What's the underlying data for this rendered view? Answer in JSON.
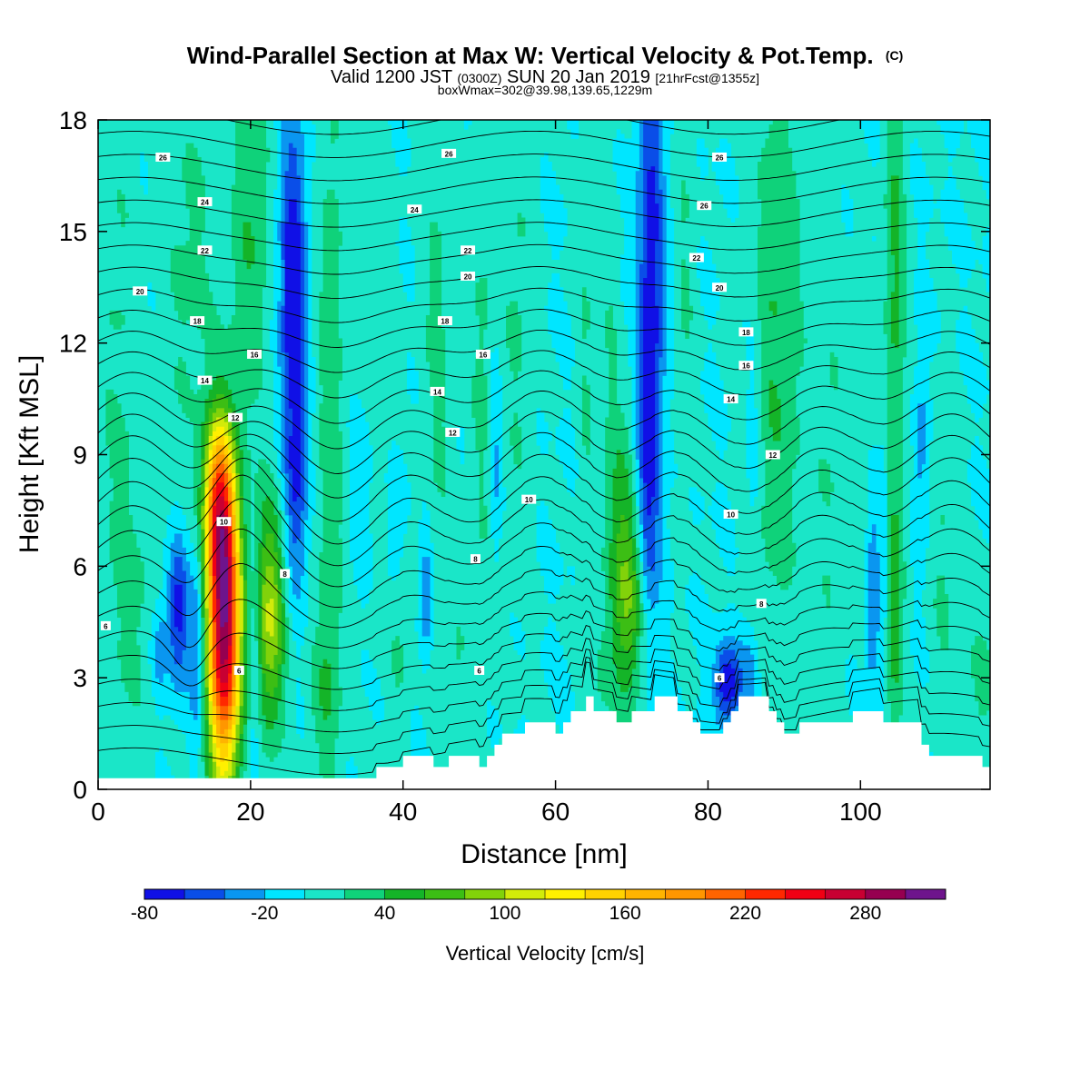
{
  "chart_data": {
    "type": "heatmap",
    "title": "Wind-Parallel Section at Max W: Vertical Velocity & Pot.Temp.",
    "title_mark": "(C)",
    "subtitle_parts": [
      "Valid 1200 JST ",
      "(0300Z)",
      " SUN 20 Jan 2019 ",
      "[21hrFcst@1355z]"
    ],
    "subtitle2": "boxWmax=302@39.98,139.65,1229m",
    "xlabel": "Distance [nm]",
    "ylabel": "Height [Kft MSL]",
    "xlim": [
      0,
      117
    ],
    "ylim": [
      0,
      18
    ],
    "x_ticks": [
      0,
      20,
      40,
      60,
      80,
      100
    ],
    "y_ticks": [
      0,
      3,
      6,
      9,
      12,
      15,
      18
    ],
    "grid": false,
    "colorbar": {
      "label": "Vertical Velocity [cm/s]",
      "min": -80,
      "step": 20,
      "colors": [
        "#1010e6",
        "#0a4ee8",
        "#0a96f0",
        "#00e6ff",
        "#1ae6c8",
        "#0fd27a",
        "#14b428",
        "#3cbe14",
        "#82d20a",
        "#d2eb0a",
        "#fff000",
        "#ffd200",
        "#ffb400",
        "#ff9600",
        "#ff6400",
        "#ff2800",
        "#f00014",
        "#c80032",
        "#960050",
        "#6e148c"
      ],
      "tick_labels": [
        "-80",
        "-20",
        "40",
        "100",
        "160",
        "220",
        "280"
      ],
      "tick_values": [
        -80,
        -20,
        40,
        100,
        160,
        220,
        280
      ]
    },
    "features": [
      {
        "x": 16.5,
        "y": 4.5,
        "sx": 1.5,
        "sy": 3.0,
        "w": 302
      },
      {
        "x": 15.5,
        "y": 7.8,
        "sx": 1.3,
        "sy": 1.5,
        "w": 120
      },
      {
        "x": 22.5,
        "y": 4.6,
        "sx": 1.4,
        "sy": 2.2,
        "w": 100
      },
      {
        "x": 25.5,
        "y": 13.5,
        "sx": 1.2,
        "sy": 3.2,
        "w": -80
      },
      {
        "x": 26.0,
        "y": 8.0,
        "sx": 1.0,
        "sy": 2.0,
        "w": -50
      },
      {
        "x": 10.5,
        "y": 4.8,
        "sx": 1.0,
        "sy": 1.4,
        "w": -70
      },
      {
        "x": 8.0,
        "y": 3.8,
        "sx": 0.8,
        "sy": 1.0,
        "w": -35
      },
      {
        "x": 13.0,
        "y": 4.0,
        "sx": 0.7,
        "sy": 2.0,
        "w": -45
      },
      {
        "x": 20.5,
        "y": 3.0,
        "sx": 0.6,
        "sy": 2.5,
        "w": -30
      },
      {
        "x": 20.0,
        "y": 15.0,
        "sx": 1.8,
        "sy": 3.5,
        "w": 40
      },
      {
        "x": 12.0,
        "y": 14.0,
        "sx": 2.5,
        "sy": 4.0,
        "w": 25
      },
      {
        "x": 30.5,
        "y": 10.0,
        "sx": 1.3,
        "sy": 7.0,
        "w": 35
      },
      {
        "x": 36.5,
        "y": 12.0,
        "sx": 1.5,
        "sy": 5.0,
        "w": 20
      },
      {
        "x": 2.5,
        "y": 12.0,
        "sx": 2.0,
        "sy": 6.0,
        "w": 20
      },
      {
        "x": 5.0,
        "y": 5.0,
        "sx": 2.5,
        "sy": 3.0,
        "w": 20
      },
      {
        "x": 29.5,
        "y": 2.5,
        "sx": 1.5,
        "sy": 1.5,
        "w": 25
      },
      {
        "x": 39.5,
        "y": 4.0,
        "sx": 1.0,
        "sy": 2.0,
        "w": 22
      },
      {
        "x": 44.5,
        "y": 12.0,
        "sx": 1.5,
        "sy": 5.0,
        "w": 25
      },
      {
        "x": 50.5,
        "y": 11.0,
        "sx": 1.3,
        "sy": 5.0,
        "w": 25
      },
      {
        "x": 55.0,
        "y": 13.0,
        "sx": 1.5,
        "sy": 5.0,
        "w": 22
      },
      {
        "x": 35.0,
        "y": 8.5,
        "sx": 1.2,
        "sy": 2.0,
        "w": -20
      },
      {
        "x": 39.0,
        "y": 7.0,
        "sx": 1.0,
        "sy": 1.5,
        "w": -18
      },
      {
        "x": 43.0,
        "y": 5.3,
        "sx": 0.5,
        "sy": 1.2,
        "w": -45
      },
      {
        "x": 52.0,
        "y": 9.0,
        "sx": 0.6,
        "sy": 2.0,
        "w": -35
      },
      {
        "x": 47.0,
        "y": 3.0,
        "sx": 1.5,
        "sy": 1.5,
        "w": 20
      },
      {
        "x": 69.5,
        "y": 5.0,
        "sx": 1.5,
        "sy": 2.0,
        "w": 80
      },
      {
        "x": 68.5,
        "y": 8.0,
        "sx": 1.0,
        "sy": 2.0,
        "w": 30
      },
      {
        "x": 66.0,
        "y": 3.0,
        "sx": 1.0,
        "sy": 1.0,
        "w": 20
      },
      {
        "x": 72.5,
        "y": 14.0,
        "sx": 1.2,
        "sy": 5.0,
        "w": -70
      },
      {
        "x": 72.0,
        "y": 8.0,
        "sx": 1.0,
        "sy": 3.0,
        "w": -40
      },
      {
        "x": 64.0,
        "y": 11.0,
        "sx": 0.8,
        "sy": 6.0,
        "w": 20
      },
      {
        "x": 67.0,
        "y": 11.0,
        "sx": 0.8,
        "sy": 4.0,
        "w": 20
      },
      {
        "x": 77.0,
        "y": 14.0,
        "sx": 1.0,
        "sy": 4.0,
        "w": 20
      },
      {
        "x": 82.5,
        "y": 2.8,
        "sx": 1.2,
        "sy": 0.8,
        "w": -80
      },
      {
        "x": 85.5,
        "y": 3.3,
        "sx": 1.0,
        "sy": 1.0,
        "w": -35
      },
      {
        "x": 86.0,
        "y": 8.0,
        "sx": 0.8,
        "sy": 3.5,
        "w": -28
      },
      {
        "x": 89.0,
        "y": 12.0,
        "sx": 2.5,
        "sy": 6.0,
        "w": 40
      },
      {
        "x": 86.0,
        "y": 5.0,
        "sx": 1.0,
        "sy": 2.0,
        "w": 25
      },
      {
        "x": 96.0,
        "y": 9.0,
        "sx": 1.5,
        "sy": 5.0,
        "w": 20
      },
      {
        "x": 100.0,
        "y": 10.0,
        "sx": 1.0,
        "sy": 3.0,
        "w": 18
      },
      {
        "x": 101.5,
        "y": 5.0,
        "sx": 0.6,
        "sy": 2.0,
        "w": -40
      },
      {
        "x": 103.0,
        "y": 7.0,
        "sx": 0.5,
        "sy": 2.0,
        "w": -25
      },
      {
        "x": 104.5,
        "y": 4.5,
        "sx": 0.8,
        "sy": 2.5,
        "w": 45
      },
      {
        "x": 104.5,
        "y": 14.0,
        "sx": 1.0,
        "sy": 5.0,
        "w": 45
      },
      {
        "x": 108.0,
        "y": 9.0,
        "sx": 0.6,
        "sy": 2.0,
        "w": -30
      },
      {
        "x": 111.0,
        "y": 6.0,
        "sx": 1.5,
        "sy": 3.0,
        "w": 22
      },
      {
        "x": 116.0,
        "y": 3.0,
        "sx": 1.5,
        "sy": 1.5,
        "w": 25
      }
    ],
    "terrain_x": [
      0,
      36.5,
      36.5,
      40,
      40,
      41,
      41,
      44,
      44,
      46,
      46,
      47,
      47,
      50,
      50,
      51,
      51,
      52,
      52,
      53,
      53,
      54,
      54,
      56,
      56,
      57,
      57,
      60,
      60,
      61,
      61,
      62,
      62,
      64,
      64,
      65,
      65,
      68,
      68,
      70,
      70,
      73,
      73,
      76,
      76,
      78,
      78,
      79,
      79,
      81,
      81,
      82,
      82,
      83,
      83,
      84,
      84,
      88,
      88,
      89,
      89,
      90,
      90,
      92,
      92,
      93,
      93,
      99,
      99,
      103,
      103,
      108,
      108,
      109,
      109,
      112,
      112,
      116,
      116,
      117
    ],
    "terrain_y": [
      0.3,
      0.3,
      0.6,
      0.6,
      0.9,
      0.9,
      0.9,
      0.9,
      0.6,
      0.6,
      0.9,
      0.9,
      0.9,
      0.9,
      0.6,
      0.6,
      0.9,
      0.9,
      1.2,
      1.2,
      1.5,
      1.5,
      1.5,
      1.5,
      1.8,
      1.8,
      1.8,
      1.8,
      1.5,
      1.5,
      1.8,
      1.8,
      2.1,
      2.1,
      2.5,
      2.5,
      2.1,
      2.1,
      1.8,
      1.8,
      2.1,
      2.1,
      2.5,
      2.5,
      2.1,
      2.1,
      1.8,
      1.8,
      1.5,
      1.5,
      1.5,
      1.5,
      1.8,
      1.8,
      2.1,
      2.1,
      2.5,
      2.5,
      2.1,
      2.1,
      1.8,
      1.8,
      1.5,
      1.5,
      1.8,
      1.8,
      1.8,
      1.8,
      2.1,
      2.1,
      1.8,
      1.8,
      1.2,
      1.2,
      0.9,
      0.9,
      0.9,
      0.9,
      0.6,
      0.6
    ],
    "isentropes": {
      "levels": [
        -2,
        0,
        2,
        4,
        6,
        8,
        10,
        12,
        14,
        16,
        18,
        20,
        22,
        24,
        26,
        28
      ],
      "labels": [
        {
          "x": 1.0,
          "y": 4.4,
          "text": "6"
        },
        {
          "x": 18.5,
          "y": 3.2,
          "text": "6"
        },
        {
          "x": 50.0,
          "y": 3.2,
          "text": "6"
        },
        {
          "x": 81.5,
          "y": 3.0,
          "text": "6"
        },
        {
          "x": 24.5,
          "y": 5.8,
          "text": "8"
        },
        {
          "x": 49.5,
          "y": 6.2,
          "text": "8"
        },
        {
          "x": 87.0,
          "y": 5.0,
          "text": "8"
        },
        {
          "x": 16.5,
          "y": 7.2,
          "text": "10"
        },
        {
          "x": 56.5,
          "y": 7.8,
          "text": "10"
        },
        {
          "x": 83.0,
          "y": 7.4,
          "text": "10"
        },
        {
          "x": 18.0,
          "y": 10.0,
          "text": "12"
        },
        {
          "x": 46.5,
          "y": 9.6,
          "text": "12"
        },
        {
          "x": 88.5,
          "y": 9.0,
          "text": "12"
        },
        {
          "x": 14.0,
          "y": 11.0,
          "text": "14"
        },
        {
          "x": 44.5,
          "y": 10.7,
          "text": "14"
        },
        {
          "x": 83.0,
          "y": 10.5,
          "text": "14"
        },
        {
          "x": 20.5,
          "y": 11.7,
          "text": "16"
        },
        {
          "x": 50.5,
          "y": 11.7,
          "text": "16"
        },
        {
          "x": 85.0,
          "y": 11.4,
          "text": "16"
        },
        {
          "x": 13.0,
          "y": 12.6,
          "text": "18"
        },
        {
          "x": 45.5,
          "y": 12.6,
          "text": "18"
        },
        {
          "x": 85.0,
          "y": 12.3,
          "text": "18"
        },
        {
          "x": 5.5,
          "y": 13.4,
          "text": "20"
        },
        {
          "x": 48.5,
          "y": 13.8,
          "text": "20"
        },
        {
          "x": 81.5,
          "y": 13.5,
          "text": "20"
        },
        {
          "x": 14.0,
          "y": 14.5,
          "text": "22"
        },
        {
          "x": 48.5,
          "y": 14.5,
          "text": "22"
        },
        {
          "x": 78.5,
          "y": 14.3,
          "text": "22"
        },
        {
          "x": 14.0,
          "y": 15.8,
          "text": "24"
        },
        {
          "x": 41.5,
          "y": 15.6,
          "text": "24"
        },
        {
          "x": 79.5,
          "y": 15.7,
          "text": "26"
        },
        {
          "x": 8.5,
          "y": 17.0,
          "text": "26"
        },
        {
          "x": 46.0,
          "y": 17.1,
          "text": "26"
        },
        {
          "x": 81.5,
          "y": 17.0,
          "text": "26"
        }
      ]
    }
  }
}
